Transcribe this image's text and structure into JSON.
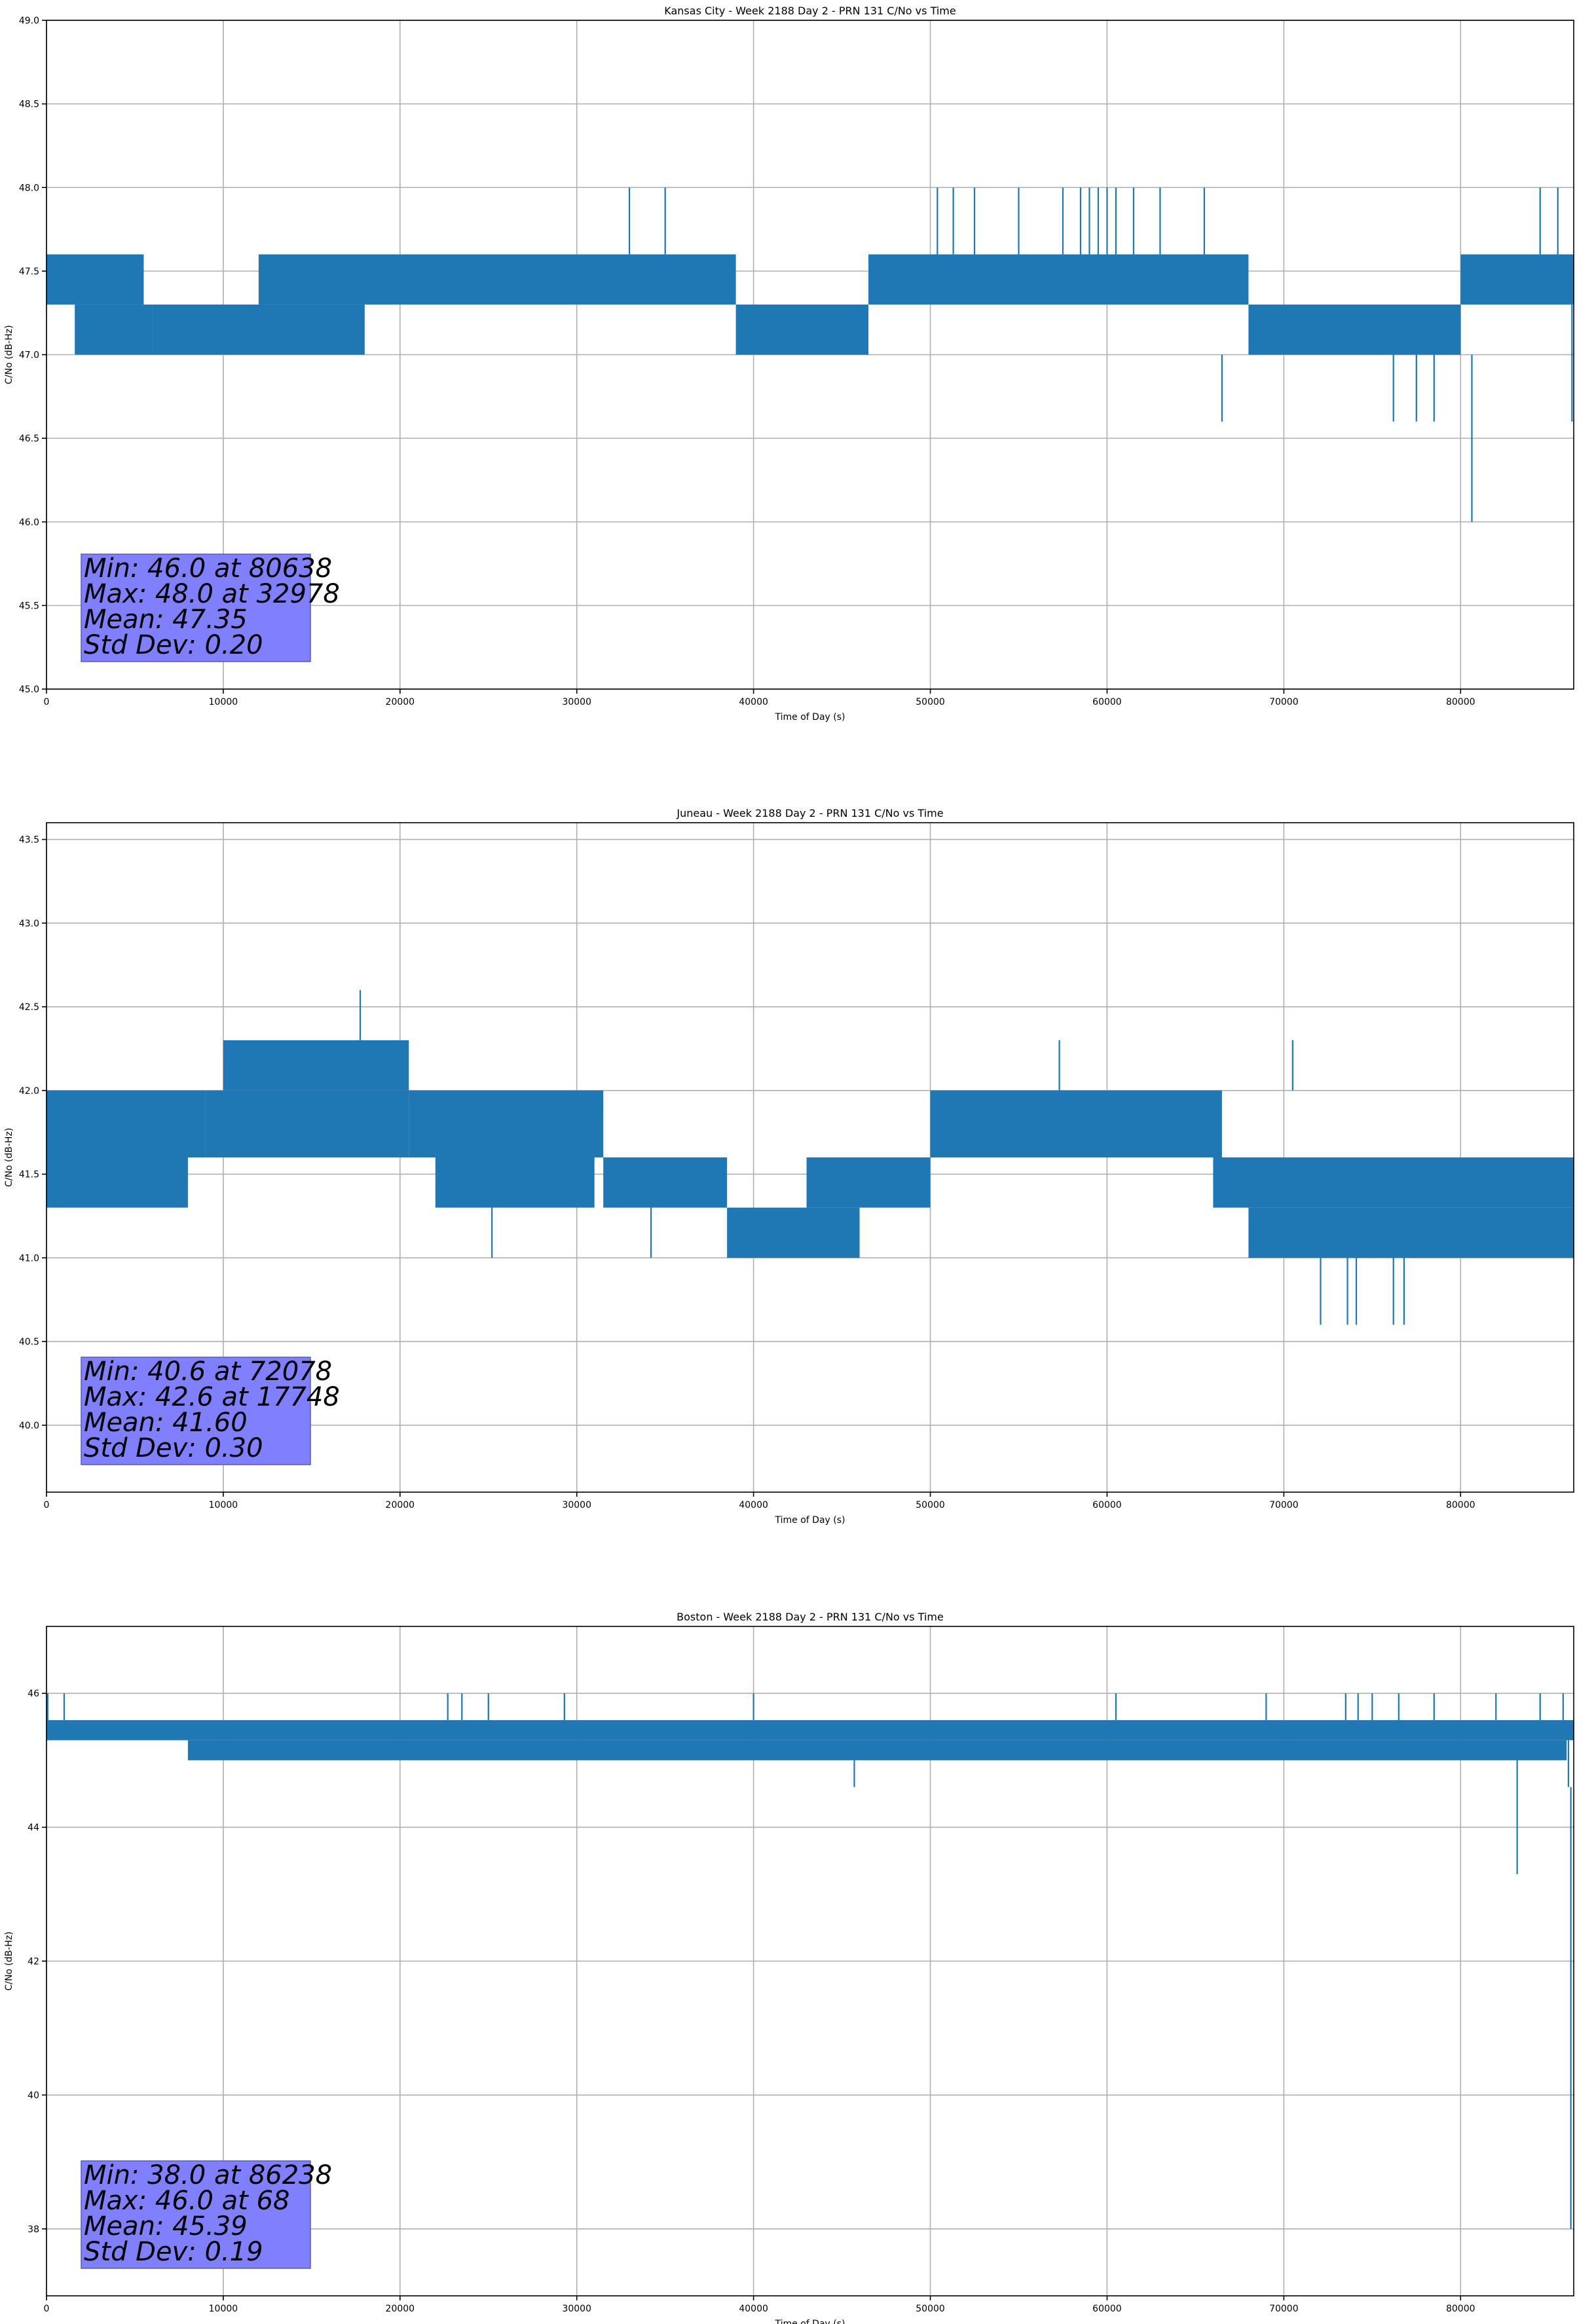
{
  "figure": {
    "background": "#ffffff",
    "series_color": "#1f77b4",
    "stats_box_color": "#8080ff"
  },
  "chart_data": [
    {
      "type": "line",
      "title": "Kansas City - Week 2188 Day 2 - PRN 131 C/No vs Time",
      "xlabel": "Time of Day (s)",
      "ylabel": "C/No (dB-Hz)",
      "xlim": [
        0,
        86400
      ],
      "ylim": [
        45.0,
        49.0
      ],
      "xticks": [
        0,
        10000,
        20000,
        30000,
        40000,
        50000,
        60000,
        70000,
        80000
      ],
      "xtick_labels": [
        "0",
        "10000",
        "20000",
        "30000",
        "40000",
        "50000",
        "60000",
        "70000",
        "80000"
      ],
      "yticks": [
        45.0,
        45.5,
        46.0,
        46.5,
        47.0,
        47.5,
        48.0,
        48.5,
        49.0
      ],
      "ytick_labels": [
        "45.0",
        "45.5",
        "46.0",
        "46.5",
        "47.0",
        "47.5",
        "48.0",
        "48.5",
        "49.0"
      ],
      "grid": true,
      "series": [
        {
          "bands": [
            {
              "x": [
                0,
                5500
              ],
              "y": [
                47.3,
                47.6
              ]
            },
            {
              "x": [
                1600,
                6000
              ],
              "y": [
                47.0,
                47.3
              ]
            },
            {
              "x": [
                6000,
                18000
              ],
              "y": [
                47.0,
                47.3
              ]
            },
            {
              "x": [
                12000,
                39000
              ],
              "y": [
                47.3,
                47.6
              ]
            },
            {
              "x": [
                39000,
                46500
              ],
              "y": [
                47.0,
                47.3
              ]
            },
            {
              "x": [
                46500,
                68000
              ],
              "y": [
                47.3,
                47.6
              ]
            },
            {
              "x": [
                68000,
                80000
              ],
              "y": [
                47.0,
                47.3
              ]
            },
            {
              "x": [
                80000,
                86400
              ],
              "y": [
                47.3,
                47.6
              ]
            }
          ],
          "spikes": [
            {
              "x": 32978,
              "y0": 47.6,
              "y1": 48.0
            },
            {
              "x": 35000,
              "y0": 47.6,
              "y1": 48.0
            },
            {
              "x": 50400,
              "y0": 47.6,
              "y1": 48.0
            },
            {
              "x": 51300,
              "y0": 47.6,
              "y1": 48.0
            },
            {
              "x": 52500,
              "y0": 47.6,
              "y1": 48.0
            },
            {
              "x": 55000,
              "y0": 47.6,
              "y1": 48.0
            },
            {
              "x": 57500,
              "y0": 47.6,
              "y1": 48.0
            },
            {
              "x": 58500,
              "y0": 47.6,
              "y1": 48.0
            },
            {
              "x": 59000,
              "y0": 47.6,
              "y1": 48.0
            },
            {
              "x": 59500,
              "y0": 47.6,
              "y1": 48.0
            },
            {
              "x": 60000,
              "y0": 47.6,
              "y1": 48.0
            },
            {
              "x": 60500,
              "y0": 47.6,
              "y1": 48.0
            },
            {
              "x": 61500,
              "y0": 47.6,
              "y1": 48.0
            },
            {
              "x": 63000,
              "y0": 47.6,
              "y1": 48.0
            },
            {
              "x": 65500,
              "y0": 47.6,
              "y1": 48.0
            },
            {
              "x": 66500,
              "y0": 47.0,
              "y1": 46.6
            },
            {
              "x": 76200,
              "y0": 47.0,
              "y1": 46.6
            },
            {
              "x": 77500,
              "y0": 47.0,
              "y1": 46.6
            },
            {
              "x": 78500,
              "y0": 47.0,
              "y1": 46.6
            },
            {
              "x": 80638,
              "y0": 47.0,
              "y1": 46.0
            },
            {
              "x": 84500,
              "y0": 47.6,
              "y1": 48.0
            },
            {
              "x": 85500,
              "y0": 47.6,
              "y1": 48.0
            },
            {
              "x": 86300,
              "y0": 47.3,
              "y1": 46.6
            }
          ]
        }
      ],
      "stats": {
        "min": "Min: 46.0 at 80638",
        "max": "Max: 48.0 at 32978",
        "mean": "Mean: 47.35",
        "std": "Std Dev: 0.20"
      }
    },
    {
      "type": "line",
      "title": "Juneau - Week 2188 Day 2 - PRN 131 C/No vs Time",
      "xlabel": "Time of Day (s)",
      "ylabel": "C/No (dB-Hz)",
      "xlim": [
        0,
        86400
      ],
      "ylim": [
        39.6,
        43.6
      ],
      "xticks": [
        0,
        10000,
        20000,
        30000,
        40000,
        50000,
        60000,
        70000,
        80000
      ],
      "xtick_labels": [
        "0",
        "10000",
        "20000",
        "30000",
        "40000",
        "50000",
        "60000",
        "70000",
        "80000"
      ],
      "yticks": [
        40.0,
        40.5,
        41.0,
        41.5,
        42.0,
        42.5,
        43.0,
        43.5
      ],
      "ytick_labels": [
        "40.0",
        "40.5",
        "41.0",
        "41.5",
        "42.0",
        "42.5",
        "43.0",
        "43.5"
      ],
      "grid": true,
      "series": [
        {
          "bands": [
            {
              "x": [
                0,
                9000
              ],
              "y": [
                41.6,
                42.0
              ]
            },
            {
              "x": [
                0,
                8000
              ],
              "y": [
                41.3,
                41.6
              ]
            },
            {
              "x": [
                9000,
                20500
              ],
              "y": [
                41.6,
                42.0
              ]
            },
            {
              "x": [
                10000,
                20500
              ],
              "y": [
                42.0,
                42.3
              ]
            },
            {
              "x": [
                20500,
                31500
              ],
              "y": [
                41.6,
                42.0
              ]
            },
            {
              "x": [
                22000,
                31000
              ],
              "y": [
                41.3,
                41.6
              ]
            },
            {
              "x": [
                31500,
                38500
              ],
              "y": [
                41.3,
                41.6
              ]
            },
            {
              "x": [
                38500,
                46000
              ],
              "y": [
                41.0,
                41.3
              ]
            },
            {
              "x": [
                43000,
                50000
              ],
              "y": [
                41.3,
                41.6
              ]
            },
            {
              "x": [
                50000,
                66500
              ],
              "y": [
                41.6,
                42.0
              ]
            },
            {
              "x": [
                66000,
                86400
              ],
              "y": [
                41.3,
                41.6
              ]
            },
            {
              "x": [
                68000,
                86400
              ],
              "y": [
                41.0,
                41.3
              ]
            }
          ],
          "spikes": [
            {
              "x": 17748,
              "y0": 42.3,
              "y1": 42.6
            },
            {
              "x": 57300,
              "y0": 42.0,
              "y1": 42.3
            },
            {
              "x": 70500,
              "y0": 42.0,
              "y1": 42.3
            },
            {
              "x": 25200,
              "y0": 41.6,
              "y1": 41.0
            },
            {
              "x": 34200,
              "y0": 41.3,
              "y1": 41.0
            },
            {
              "x": 72078,
              "y0": 41.0,
              "y1": 40.6
            },
            {
              "x": 73600,
              "y0": 41.0,
              "y1": 40.6
            },
            {
              "x": 74100,
              "y0": 41.0,
              "y1": 40.6
            },
            {
              "x": 76200,
              "y0": 41.0,
              "y1": 40.6
            },
            {
              "x": 76800,
              "y0": 41.0,
              "y1": 40.6
            }
          ]
        }
      ],
      "stats": {
        "min": "Min: 40.6 at 72078",
        "max": "Max: 42.6 at 17748",
        "mean": "Mean: 41.60",
        "std": "Std Dev: 0.30"
      }
    },
    {
      "type": "line",
      "title": "Boston - Week 2188 Day 2 - PRN 131 C/No vs Time",
      "xlabel": "Time of Day (s)",
      "ylabel": "C/No (dB-Hz)",
      "xlim": [
        0,
        86400
      ],
      "ylim": [
        37.0,
        47.0
      ],
      "xticks": [
        0,
        10000,
        20000,
        30000,
        40000,
        50000,
        60000,
        70000,
        80000
      ],
      "xtick_labels": [
        "0",
        "10000",
        "20000",
        "30000",
        "40000",
        "50000",
        "60000",
        "70000",
        "80000"
      ],
      "yticks": [
        38,
        40,
        42,
        44,
        46
      ],
      "ytick_labels": [
        "38",
        "40",
        "42",
        "44",
        "46"
      ],
      "grid": true,
      "series": [
        {
          "bands": [
            {
              "x": [
                0,
                86400
              ],
              "y": [
                45.3,
                45.6
              ]
            },
            {
              "x": [
                8000,
                86000
              ],
              "y": [
                45.0,
                45.3
              ]
            }
          ],
          "spikes": [
            {
              "x": 68,
              "y0": 45.6,
              "y1": 46.0
            },
            {
              "x": 1000,
              "y0": 45.6,
              "y1": 46.0
            },
            {
              "x": 22700,
              "y0": 45.6,
              "y1": 46.0
            },
            {
              "x": 23500,
              "y0": 45.6,
              "y1": 46.0
            },
            {
              "x": 25000,
              "y0": 45.6,
              "y1": 46.0
            },
            {
              "x": 29300,
              "y0": 45.6,
              "y1": 46.0
            },
            {
              "x": 40000,
              "y0": 45.6,
              "y1": 46.0
            },
            {
              "x": 60500,
              "y0": 45.6,
              "y1": 46.0
            },
            {
              "x": 69000,
              "y0": 45.6,
              "y1": 46.0
            },
            {
              "x": 73500,
              "y0": 45.6,
              "y1": 46.0
            },
            {
              "x": 74200,
              "y0": 45.6,
              "y1": 46.0
            },
            {
              "x": 75000,
              "y0": 45.6,
              "y1": 46.0
            },
            {
              "x": 76500,
              "y0": 45.6,
              "y1": 46.0
            },
            {
              "x": 78500,
              "y0": 45.6,
              "y1": 46.0
            },
            {
              "x": 82000,
              "y0": 45.6,
              "y1": 46.0
            },
            {
              "x": 84500,
              "y0": 45.6,
              "y1": 46.0
            },
            {
              "x": 85800,
              "y0": 45.6,
              "y1": 46.0
            },
            {
              "x": 45700,
              "y0": 45.0,
              "y1": 44.6
            },
            {
              "x": 83200,
              "y0": 45.0,
              "y1": 43.3
            },
            {
              "x": 86100,
              "y0": 45.3,
              "y1": 44.6
            },
            {
              "x": 86238,
              "y0": 44.6,
              "y1": 38.0
            }
          ]
        }
      ],
      "stats": {
        "min": "Min: 38.0 at 86238",
        "max": "Max: 46.0 at 68",
        "mean": "Mean: 45.39",
        "std": "Std Dev: 0.19"
      }
    }
  ]
}
